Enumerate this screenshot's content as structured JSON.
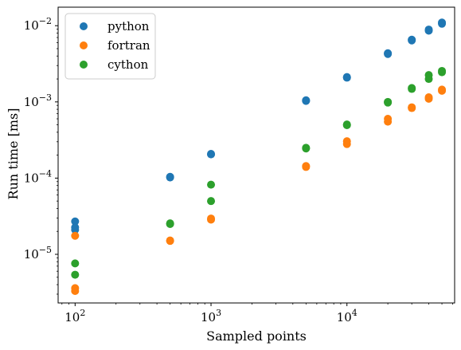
{
  "chart_data": {
    "type": "scatter",
    "xscale": "log",
    "yscale": "log",
    "xlabel": "Sampled points",
    "ylabel": "Run time [ms]",
    "xlim": [
      75,
      62000
    ],
    "ylim": [
      2.3e-06,
      0.0175
    ],
    "xticks": [
      {
        "value": 100,
        "base": "10",
        "exp": "2"
      },
      {
        "value": 1000,
        "base": "10",
        "exp": "3"
      },
      {
        "value": 10000,
        "base": "10",
        "exp": "4"
      }
    ],
    "yticks": [
      {
        "value": 1e-05,
        "base": "10",
        "exp": "−5"
      },
      {
        "value": 0.0001,
        "base": "10",
        "exp": "−4"
      },
      {
        "value": 0.001,
        "base": "10",
        "exp": "−3"
      },
      {
        "value": 0.01,
        "base": "10",
        "exp": "−2"
      }
    ],
    "legend_position": "top-left",
    "grid": false,
    "series": [
      {
        "name": "python",
        "color": "#1f77b4",
        "points": [
          [
            100,
            2.7e-05
          ],
          [
            100,
            2.25e-05
          ],
          [
            100,
            2.1e-05
          ],
          [
            500,
            0.000102
          ],
          [
            500,
            0.000104
          ],
          [
            1000,
            0.000205
          ],
          [
            1000,
            0.000208
          ],
          [
            5000,
            0.00103
          ],
          [
            5000,
            0.00105
          ],
          [
            10000,
            0.00208
          ],
          [
            10000,
            0.00212
          ],
          [
            20000,
            0.00425
          ],
          [
            20000,
            0.00435
          ],
          [
            30000,
            0.0064
          ],
          [
            30000,
            0.00655
          ],
          [
            40000,
            0.0086
          ],
          [
            40000,
            0.0089
          ],
          [
            50000,
            0.0106
          ],
          [
            50000,
            0.011
          ]
        ]
      },
      {
        "name": "fortran",
        "color": "#ff7f0e",
        "points": [
          [
            100,
            1.75e-05
          ],
          [
            100,
            3.6e-06
          ],
          [
            100,
            3.3e-06
          ],
          [
            500,
            1.5e-05
          ],
          [
            500,
            1.52e-05
          ],
          [
            1000,
            2.85e-05
          ],
          [
            1000,
            2.95e-05
          ],
          [
            5000,
            0.00014
          ],
          [
            5000,
            0.000144
          ],
          [
            10000,
            0.00028
          ],
          [
            10000,
            0.000305
          ],
          [
            20000,
            0.00055
          ],
          [
            20000,
            0.0006
          ],
          [
            30000,
            0.00083
          ],
          [
            30000,
            0.00085
          ],
          [
            40000,
            0.0011
          ],
          [
            40000,
            0.00115
          ],
          [
            50000,
            0.0014
          ],
          [
            50000,
            0.00145
          ]
        ]
      },
      {
        "name": "cython",
        "color": "#2ca02c",
        "points": [
          [
            100,
            7.6e-06
          ],
          [
            100,
            5.4e-06
          ],
          [
            500,
            2.5e-05
          ],
          [
            500,
            2.55e-05
          ],
          [
            1000,
            8.2e-05
          ],
          [
            1000,
            5e-05
          ],
          [
            5000,
            0.000245
          ],
          [
            5000,
            0.00025
          ],
          [
            10000,
            0.000495
          ],
          [
            10000,
            0.000505
          ],
          [
            20000,
            0.00098
          ],
          [
            20000,
            0.001
          ],
          [
            30000,
            0.00148
          ],
          [
            30000,
            0.00152
          ],
          [
            40000,
            0.002
          ],
          [
            40000,
            0.00225
          ],
          [
            50000,
            0.00245
          ],
          [
            50000,
            0.00255
          ]
        ]
      }
    ]
  }
}
